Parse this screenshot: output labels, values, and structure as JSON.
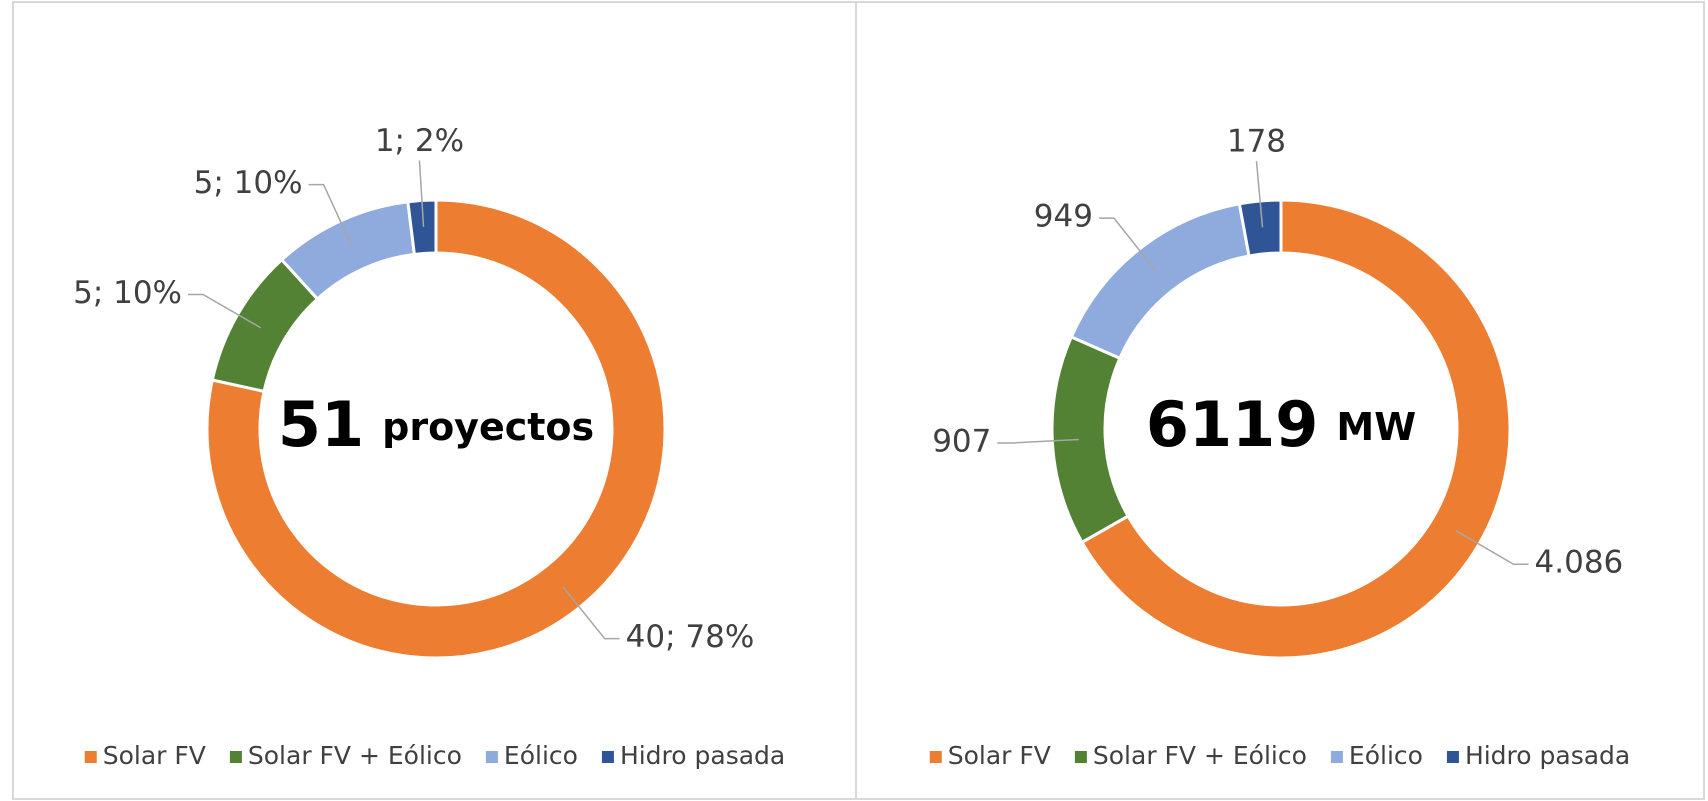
{
  "chart_data": [
    {
      "type": "donut",
      "categories": [
        "Solar FV",
        "Solar FV + Eólico",
        "Eólico",
        "Hidro pasada"
      ],
      "values": [
        40,
        5,
        5,
        1
      ],
      "value_labels": [
        "40; 78%",
        "5; 10%",
        "5; 10%",
        "1; 2%"
      ],
      "colors": [
        "#ED7D31",
        "#548235",
        "#8FAADC",
        "#2F5597"
      ],
      "center_value": 51,
      "center_label": "proyectos",
      "legend": "bottom"
    },
    {
      "type": "donut",
      "categories": [
        "Solar FV",
        "Solar FV + Eólico",
        "Eólico",
        "Hidro pasada"
      ],
      "values": [
        4086,
        907,
        949,
        178
      ],
      "value_labels": [
        "4.086",
        "907",
        "949",
        "178"
      ],
      "colors": [
        "#ED7D31",
        "#548235",
        "#8FAADC",
        "#2F5597"
      ],
      "center_value": 6119,
      "center_label": "MW",
      "legend": "bottom"
    }
  ]
}
